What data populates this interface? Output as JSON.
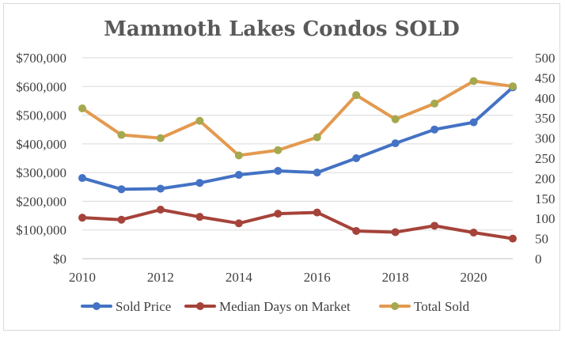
{
  "chart_data": {
    "type": "line",
    "title": "Mammoth Lakes Condos SOLD",
    "x": [
      2010,
      2011,
      2012,
      2013,
      2014,
      2015,
      2016,
      2017,
      2018,
      2019,
      2020,
      2021
    ],
    "x_ticks": [
      2010,
      2012,
      2014,
      2016,
      2018,
      2020
    ],
    "x_tick_labels": [
      "2010",
      "2012",
      "2014",
      "2016",
      "2018",
      "2020"
    ],
    "xlim": [
      2010,
      2021
    ],
    "y_left": {
      "range": [
        0,
        700000
      ],
      "ticks": [
        0,
        100000,
        200000,
        300000,
        400000,
        500000,
        600000,
        700000
      ],
      "tick_labels": [
        "$0",
        "$100,000",
        "$200,000",
        "$300,000",
        "$400,000",
        "$500,000",
        "$600,000",
        "$700,000"
      ]
    },
    "y_right": {
      "range": [
        0,
        500
      ],
      "ticks": [
        0,
        50,
        100,
        150,
        200,
        250,
        300,
        350,
        400,
        450,
        500
      ],
      "tick_labels": [
        "0",
        "50",
        "100",
        "150",
        "200",
        "250",
        "300",
        "350",
        "400",
        "450",
        "500"
      ]
    },
    "series": [
      {
        "name": "Sold Price",
        "axis": "left",
        "color": "#4472c4",
        "values": [
          281000,
          242000,
          244000,
          264000,
          292000,
          306000,
          300000,
          350000,
          402000,
          450000,
          475000,
          597000
        ]
      },
      {
        "name": "Median Days on Market",
        "axis": "right",
        "color": "#a5433a",
        "values": [
          102,
          97,
          122,
          104,
          88,
          112,
          115,
          69,
          66,
          82,
          65,
          50
        ]
      },
      {
        "name": "Total Sold",
        "axis": "right",
        "color": "#e39a4f",
        "markerColor": "#a5a84d",
        "values": [
          374,
          308,
          300,
          343,
          257,
          270,
          302,
          407,
          347,
          386,
          442,
          429
        ]
      }
    ],
    "legend": {
      "position": "bottom",
      "entries": [
        "Sold Price",
        "Median Days on Market",
        "Total Sold"
      ]
    },
    "grid": true
  }
}
